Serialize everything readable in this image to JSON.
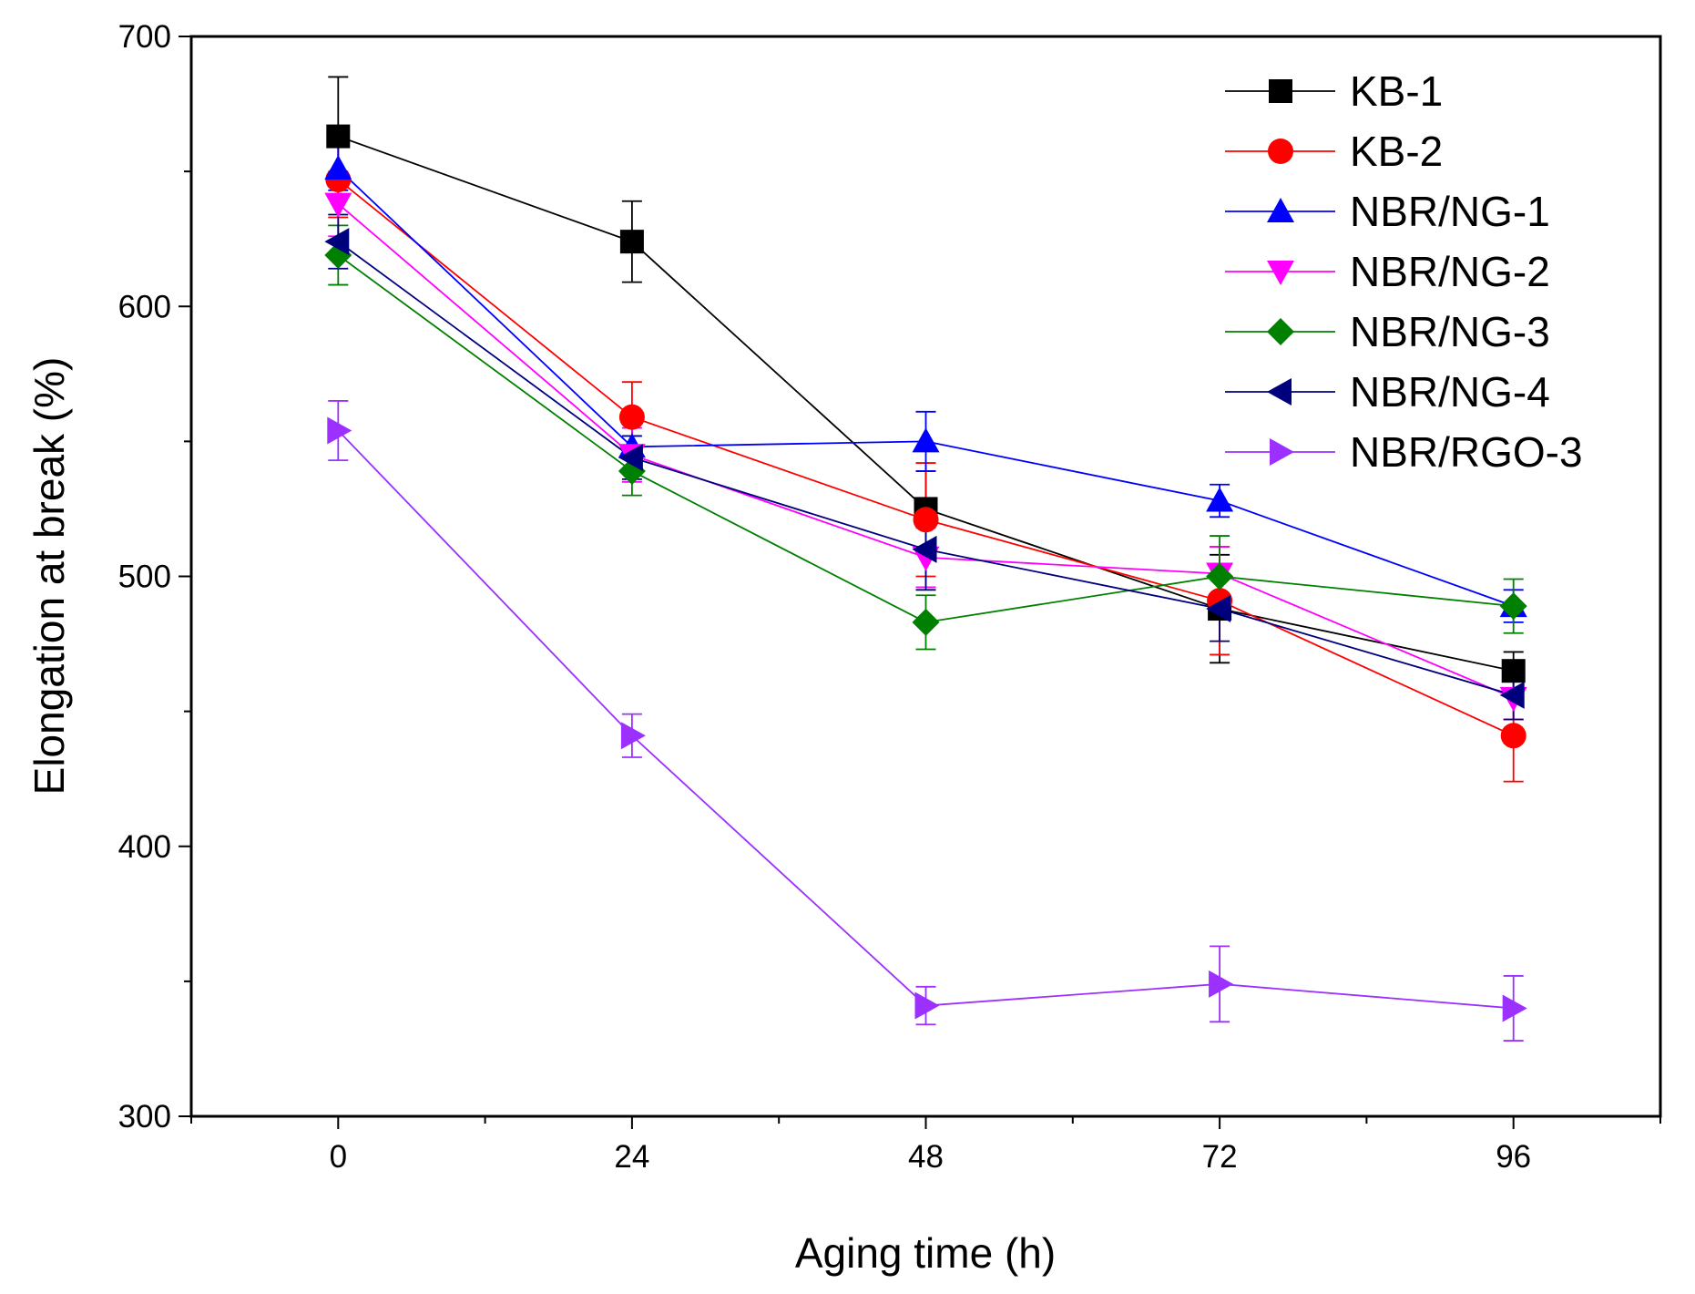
{
  "chart_data": {
    "type": "line",
    "title": "",
    "xlabel": "Aging time (h)",
    "ylabel": "Elongation at break (%)",
    "x": [
      0,
      24,
      48,
      72,
      96
    ],
    "x_ticks": [
      "0",
      "24",
      "48",
      "72",
      "96"
    ],
    "y_ticks": [
      "300",
      "400",
      "500",
      "600",
      "700"
    ],
    "xlim": [
      -12,
      108
    ],
    "ylim": [
      300,
      700
    ],
    "grid": false,
    "legend_position": "top-right",
    "series": [
      {
        "name": "KB-1",
        "color": "#000000",
        "marker": "square",
        "values": [
          663,
          624,
          525,
          488,
          465
        ],
        "errors": [
          22,
          15,
          14,
          20,
          7
        ]
      },
      {
        "name": "KB-2",
        "color": "#ff0000",
        "marker": "circle",
        "values": [
          647,
          559,
          521,
          491,
          441
        ],
        "errors": [
          14,
          13,
          21,
          20,
          17
        ]
      },
      {
        "name": "NBR/NG-1",
        "color": "#0000ff",
        "marker": "triangle-up",
        "values": [
          651,
          548,
          550,
          528,
          489
        ],
        "errors": [
          8,
          10,
          11,
          6,
          6
        ]
      },
      {
        "name": "NBR/NG-2",
        "color": "#ff00ff",
        "marker": "triangle-down",
        "values": [
          638,
          545,
          507,
          501,
          455
        ],
        "errors": [
          12,
          10,
          11,
          10,
          8
        ]
      },
      {
        "name": "NBR/NG-3",
        "color": "#008000",
        "marker": "diamond",
        "values": [
          619,
          539,
          483,
          500,
          489
        ],
        "errors": [
          11,
          9,
          10,
          15,
          10
        ]
      },
      {
        "name": "NBR/NG-4",
        "color": "#00007f",
        "marker": "triangle-left",
        "values": [
          624,
          544,
          510,
          488,
          456
        ],
        "errors": [
          10,
          8,
          15,
          12,
          9
        ]
      },
      {
        "name": "NBR/RGO-3",
        "color": "#9b30ff",
        "marker": "triangle-right",
        "values": [
          554,
          441,
          341,
          349,
          340
        ],
        "errors": [
          11,
          8,
          7,
          14,
          12
        ]
      }
    ]
  }
}
